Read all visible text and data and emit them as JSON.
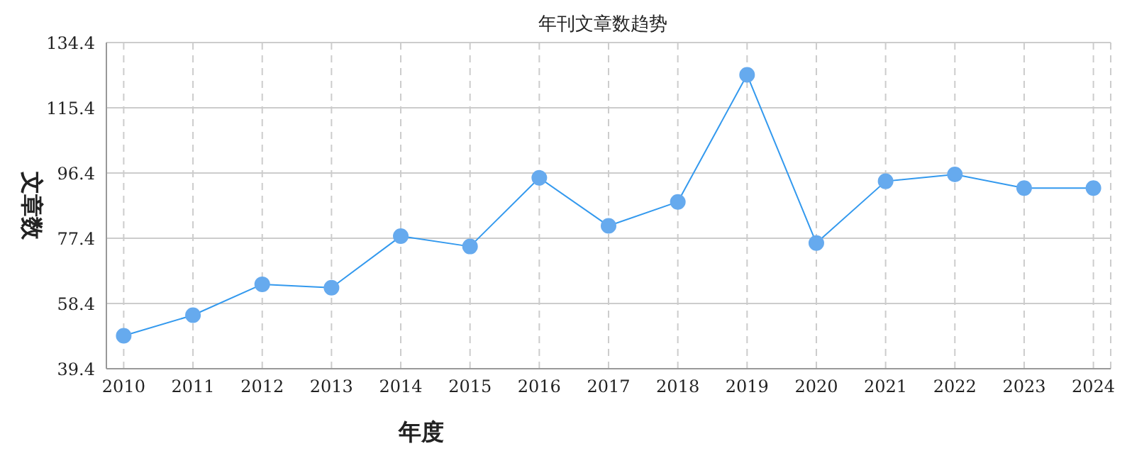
{
  "chart_data": {
    "type": "line",
    "title": "年刊文章数趋势",
    "xlabel": "年度",
    "ylabel": "文章数",
    "categories": [
      "2010",
      "2011",
      "2012",
      "2013",
      "2014",
      "2015",
      "2016",
      "2017",
      "2018",
      "2019",
      "2020",
      "2021",
      "2022",
      "2023",
      "2024"
    ],
    "series": [
      {
        "color": "#3399ee",
        "values": [
          49,
          55,
          64,
          63,
          78,
          75,
          95,
          81,
          88,
          125,
          76,
          94,
          96,
          92,
          92
        ]
      }
    ],
    "ylim": [
      39.4,
      134.4
    ],
    "yticks": [
      39.4,
      58.4,
      77.4,
      96.4,
      115.4,
      134.4
    ],
    "grid": true,
    "marker": "circle",
    "line_style": "solid"
  }
}
